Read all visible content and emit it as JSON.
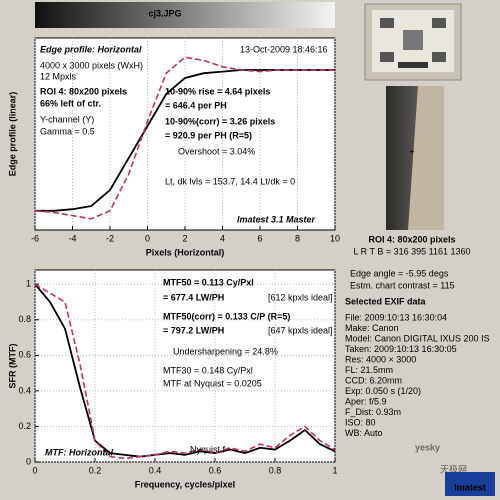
{
  "header": {
    "title": "cj3.JPG"
  },
  "chart_data": [
    {
      "type": "line",
      "title": "Edge profile: Horizontal",
      "x_label": "Pixels (Horizontal)",
      "y_label": "Edge profile (linear)",
      "x": [
        -6,
        -5,
        -4,
        -3,
        -2,
        -1,
        0,
        1,
        2,
        3,
        4,
        5,
        6,
        7,
        8,
        9,
        10
      ],
      "series": [
        {
          "color": "#000000",
          "dashed": false,
          "values": [
            0.12,
            0.12,
            0.13,
            0.15,
            0.25,
            0.45,
            0.65,
            0.85,
            0.95,
            0.98,
            0.99,
            1.0,
            1.0,
            1.0,
            1.0,
            1.0,
            1.0
          ]
        },
        {
          "color": "#c0306a",
          "dashed": true,
          "values": [
            0.12,
            0.11,
            0.09,
            0.07,
            0.12,
            0.35,
            0.68,
            0.98,
            1.08,
            1.06,
            1.02,
            1.0,
            0.99,
            1.0,
            1.0,
            1.0,
            1.0
          ]
        }
      ],
      "xlim": [
        -6,
        10
      ],
      "xticks": [
        -6,
        -4,
        -2,
        0,
        2,
        4,
        6,
        8,
        10
      ],
      "ylim": [
        0,
        1.2
      ],
      "grid": true,
      "annotations": [
        "13-Oct-2009 18:46:16",
        "4000 x 3000 pixels (WxH)",
        "12 Mpxls",
        "ROI 4:  80x200 pixels",
        "66% left of ctr.",
        "Y-channel  (Y)",
        "Gamma = 0.5",
        "10-90% rise = 4.64 pixels",
        "= 646.4 per PH",
        "10-90%(corr) = 3.26 pixels",
        "= 920.9 per PH   (R=5)",
        "Overshoot = 3.04%",
        "Lt, dk lvls = 153.7, 14.4   Lt/dk = 0",
        "Imatest 3.1 Master"
      ]
    },
    {
      "type": "line",
      "title": "MTF: Horizontal",
      "x_label": "Frequency, cycles/pixel",
      "y_label": "SFR (MTF)",
      "x": [
        0,
        0.05,
        0.1,
        0.15,
        0.2,
        0.25,
        0.3,
        0.35,
        0.4,
        0.45,
        0.5,
        0.55,
        0.6,
        0.65,
        0.7,
        0.75,
        0.8,
        0.85,
        0.9,
        0.95,
        1
      ],
      "series": [
        {
          "color": "#000000",
          "dashed": false,
          "values": [
            1.0,
            0.9,
            0.75,
            0.42,
            0.12,
            0.05,
            0.04,
            0.03,
            0.04,
            0.05,
            0.04,
            0.06,
            0.05,
            0.07,
            0.05,
            0.08,
            0.07,
            0.12,
            0.18,
            0.1,
            0.06
          ]
        },
        {
          "color": "#c0306a",
          "dashed": true,
          "values": [
            1.0,
            0.95,
            0.9,
            0.55,
            0.12,
            0.03,
            0.02,
            0.03,
            0.04,
            0.06,
            0.05,
            0.07,
            0.05,
            0.08,
            0.06,
            0.1,
            0.08,
            0.15,
            0.2,
            0.12,
            0.07
          ]
        }
      ],
      "xlim": [
        0,
        1
      ],
      "xticks": [
        0,
        0.2,
        0.4,
        0.6,
        0.8,
        1
      ],
      "ylim": [
        0,
        1.08
      ],
      "yticks": [
        0,
        0.2,
        0.4,
        0.6,
        0.8,
        1
      ],
      "grid": true,
      "annotations": [
        "MTF50 = 0.113 Cy/Pxl",
        "= 677.4 LW/PH",
        "[612 kpxls ideal]",
        "MTF50(corr) = 0.133 C/P  (R=5)",
        "= 797.2 LW/PH",
        "[647 kpxls ideal]",
        "Undersharpening = 24.8%",
        "MTF30 = 0.148 Cy/Pxl",
        "MTF at Nyquist = 0.0205",
        "Nyquist f"
      ]
    }
  ],
  "side_panel": {
    "roi_title": "ROI 4:  80x200 pixels",
    "roi_coords": "L R  T B = 316 395  1161 1360",
    "edge_angle": "Edge angle = -5.95 degs",
    "contrast": "Estm. chart contrast = 115",
    "exif_title": "Selected EXIF data",
    "exif": [
      "File:  2009:10:13 16:30:04",
      "Make:  Canon",
      "Model:  Canon DIGITAL IXUS 200 IS",
      "Taken:  2009:10:13 16:30:05",
      "Res:  4000 × 3000",
      "FL:  21.5mm",
      "CCD:  6.20mm",
      "Exp:  0.050 s (1/20)",
      "Aper:  f/5.9",
      "F_Dist:  0.93m",
      "ISO:  80",
      "WB:  Auto"
    ],
    "logo": "Imatest",
    "watermark": "yesky",
    "watermark_sub": "天极网"
  }
}
